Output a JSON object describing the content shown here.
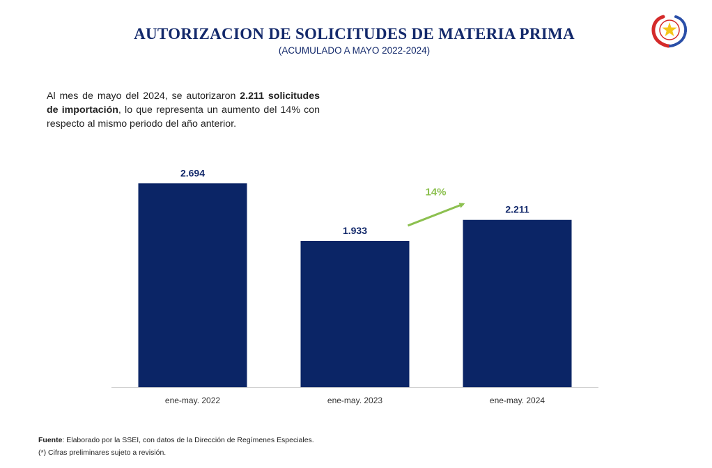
{
  "header": {
    "title": "AUTORIZACION DE SOLICITUDES DE MATERIA PRIMA",
    "subtitle": "(ACUMULADO A MAYO 2022-2024)",
    "emblem_icon": "paraguay-national-seal-icon"
  },
  "description": {
    "part1": "Al mes de mayo del 2024, se autorizaron ",
    "bold1": "2.211 solicitudes de importación",
    "part2": ",  lo que representa un aumento del 14% con respecto al mismo periodo del año anterior."
  },
  "chart_data": {
    "type": "bar",
    "title": "",
    "xlabel": "",
    "ylabel": "",
    "categories": [
      "ene-may. 2022",
      "ene-may. 2023",
      "ene-may. 2024"
    ],
    "values": [
      2694,
      1933,
      2211
    ],
    "data_labels": [
      "2.694",
      "1.933",
      "2.211"
    ],
    "ylim": [
      0,
      3000
    ],
    "grid": false,
    "annotation": {
      "text": "14%",
      "from_category": "ene-may. 2023",
      "to_category": "ene-may. 2024"
    },
    "colors": {
      "bar": "#0b2566",
      "arrow": "#8cc04f",
      "label": "#13296b",
      "axis": "#d0d0d0"
    }
  },
  "footer": {
    "source_label": "Fuente",
    "source_text": ": Elaborado por la SSEI, con datos de la Dirección de Regímenes Especiales.",
    "note": "(*) Cifras preliminares sujeto a revisión."
  }
}
